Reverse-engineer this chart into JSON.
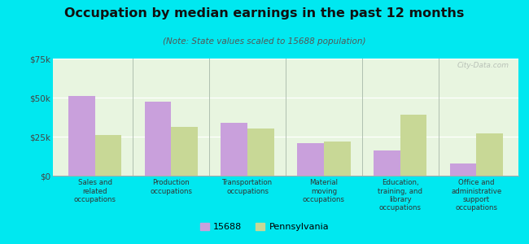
{
  "title": "Occupation by median earnings in the past 12 months",
  "subtitle": "(Note: State values scaled to 15688 population)",
  "categories": [
    "Sales and\nrelated\noccupations",
    "Production\noccupations",
    "Transportation\noccupations",
    "Material\nmoving\noccupations",
    "Education,\ntraining, and\nlibrary\noccupations",
    "Office and\nadministrative\nsupport\noccupations"
  ],
  "values_15688": [
    51000,
    47500,
    34000,
    21000,
    16000,
    8000
  ],
  "values_pa": [
    26000,
    31000,
    30000,
    22000,
    39000,
    27000
  ],
  "bar_color_15688": "#c9a0dc",
  "bar_color_pa": "#c8d896",
  "background_outer": "#00e8f0",
  "background_plot": "#e8f5e0",
  "ylim": [
    0,
    75000
  ],
  "yticks": [
    0,
    25000,
    50000,
    75000
  ],
  "ytick_labels": [
    "$0",
    "$25k",
    "$50k",
    "$75k"
  ],
  "legend_labels": [
    "15688",
    "Pennsylvania"
  ],
  "watermark": "City-Data.com",
  "bar_width": 0.35
}
